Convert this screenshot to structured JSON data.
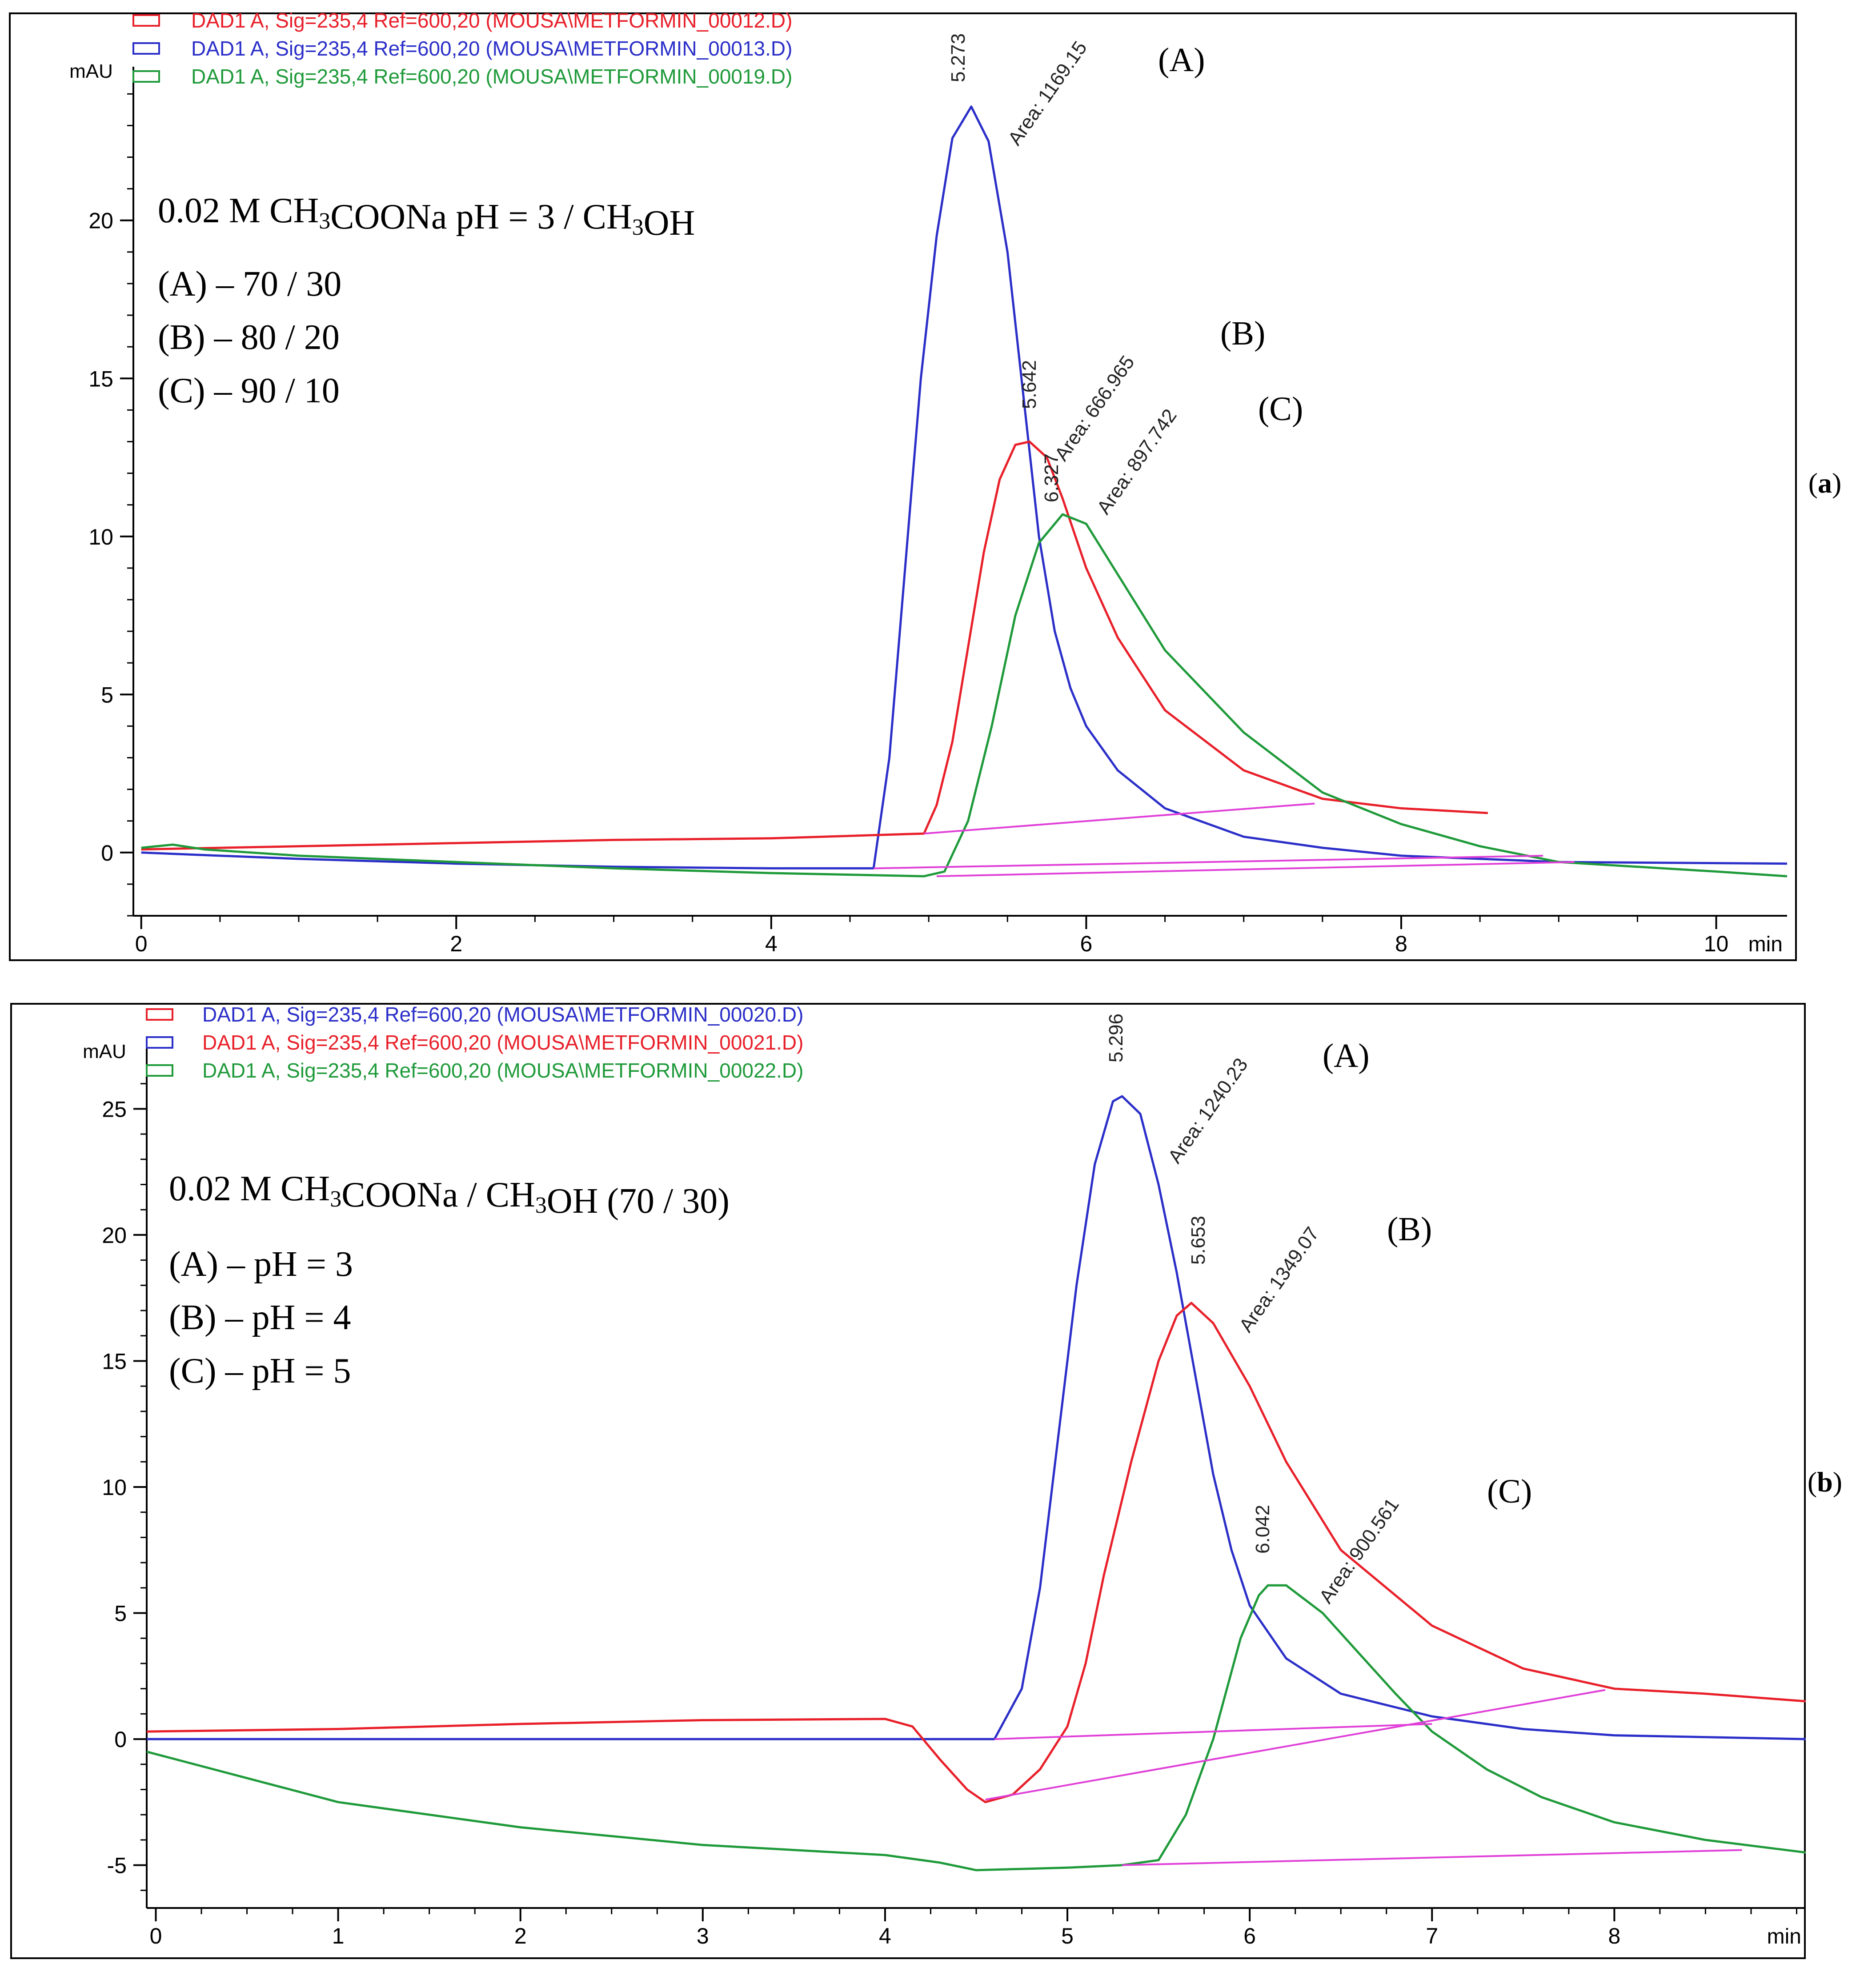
{
  "chart_data": [
    {
      "type": "line",
      "panel_label": "a",
      "y_unit_label": "mAU",
      "x_unit_label": "min",
      "xlim": [
        -0.05,
        10.45
      ],
      "ylim": [
        -2.0,
        24.3
      ],
      "xticks": [
        0,
        2,
        4,
        6,
        8,
        10
      ],
      "yticks": [
        0,
        5,
        10,
        15,
        20
      ],
      "legend": [
        {
          "color": "#e8202a",
          "text": "DAD1 A, Sig=235,4 Ref=600,20  (MOUSA\\METFORMIN_00012.D)"
        },
        {
          "color": "#2b2fc8",
          "text": "DAD1 A, Sig=235,4 Ref=600,20  (MOUSA\\METFORMIN_00013.D)"
        },
        {
          "color": "#1f9a3a",
          "text": "DAD1 A, Sig=235,4 Ref=600,20  (MOUSA\\METFORMIN_00019.D)"
        }
      ],
      "conditions": {
        "title": "0.02 M CH3COONa pH = 3 / CH3OH",
        "lines": [
          "(A) – 70 / 30",
          "(B) – 80 / 20",
          "(C) – 90 / 10"
        ]
      },
      "peaks": [
        {
          "letter": "(A)",
          "rt": "5.273",
          "area": "Area: 1169.15",
          "color": "#2b2fc8"
        },
        {
          "letter": "(B)",
          "rt": "5.642",
          "area": "Area: 666.965",
          "color": "#e8202a"
        },
        {
          "letter": "(C)",
          "rt": "6.327",
          "area": "Area: 897.742",
          "color": "#1f9a3a"
        }
      ],
      "series": [
        {
          "name": "blue (A)",
          "color": "#2b2fc8",
          "points": [
            [
              0,
              0.0
            ],
            [
              1,
              -0.2
            ],
            [
              2,
              -0.35
            ],
            [
              3,
              -0.45
            ],
            [
              4,
              -0.5
            ],
            [
              4.65,
              -0.5
            ],
            [
              4.75,
              3
            ],
            [
              4.85,
              9
            ],
            [
              4.95,
              15
            ],
            [
              5.05,
              19.5
            ],
            [
              5.15,
              22.6
            ],
            [
              5.27,
              23.6
            ],
            [
              5.38,
              22.5
            ],
            [
              5.5,
              19
            ],
            [
              5.6,
              14.5
            ],
            [
              5.7,
              10
            ],
            [
              5.8,
              7
            ],
            [
              5.9,
              5.2
            ],
            [
              6.0,
              4.0
            ],
            [
              6.2,
              2.6
            ],
            [
              6.5,
              1.4
            ],
            [
              7.0,
              0.5
            ],
            [
              7.5,
              0.15
            ],
            [
              8.0,
              -0.1
            ],
            [
              9.0,
              -0.3
            ],
            [
              10.45,
              -0.35
            ]
          ]
        },
        {
          "name": "red (B)",
          "color": "#e8202a",
          "points": [
            [
              0,
              0.1
            ],
            [
              1,
              0.2
            ],
            [
              2,
              0.3
            ],
            [
              3,
              0.4
            ],
            [
              4,
              0.45
            ],
            [
              4.97,
              0.6
            ],
            [
              5.05,
              1.5
            ],
            [
              5.15,
              3.5
            ],
            [
              5.25,
              6.5
            ],
            [
              5.35,
              9.5
            ],
            [
              5.45,
              11.8
            ],
            [
              5.55,
              12.9
            ],
            [
              5.64,
              13.0
            ],
            [
              5.75,
              12.5
            ],
            [
              5.85,
              11.2
            ],
            [
              6.0,
              9.0
            ],
            [
              6.2,
              6.8
            ],
            [
              6.5,
              4.5
            ],
            [
              7.0,
              2.6
            ],
            [
              7.5,
              1.7
            ],
            [
              8.0,
              1.4
            ],
            [
              8.55,
              1.25
            ]
          ]
        },
        {
          "name": "green (C)",
          "color": "#1f9a3a",
          "points": [
            [
              0,
              0.15
            ],
            [
              0.2,
              0.25
            ],
            [
              0.4,
              0.1
            ],
            [
              1,
              -0.1
            ],
            [
              2,
              -0.3
            ],
            [
              3,
              -0.5
            ],
            [
              4,
              -0.65
            ],
            [
              4.97,
              -0.75
            ],
            [
              5.1,
              -0.6
            ],
            [
              5.25,
              1
            ],
            [
              5.4,
              4
            ],
            [
              5.55,
              7.5
            ],
            [
              5.7,
              9.8
            ],
            [
              5.85,
              10.7
            ],
            [
              6.0,
              10.4
            ],
            [
              6.2,
              8.8
            ],
            [
              6.5,
              6.4
            ],
            [
              7.0,
              3.8
            ],
            [
              7.5,
              1.9
            ],
            [
              8.0,
              0.9
            ],
            [
              8.5,
              0.2
            ],
            [
              9.0,
              -0.3
            ],
            [
              10.0,
              -0.6
            ],
            [
              10.45,
              -0.75
            ]
          ]
        }
      ],
      "baselines": [
        {
          "color": "#e040d8",
          "from": [
            4.97,
            0.6
          ],
          "to": [
            7.45,
            1.55
          ]
        },
        {
          "color": "#e040d8",
          "from": [
            4.65,
            -0.5
          ],
          "to": [
            8.9,
            -0.1
          ]
        },
        {
          "color": "#e040d8",
          "from": [
            5.05,
            -0.75
          ],
          "to": [
            9.1,
            -0.3
          ]
        }
      ]
    },
    {
      "type": "line",
      "panel_label": "b",
      "y_unit_label": "mAU",
      "x_unit_label": "min",
      "xlim": [
        -0.05,
        9.05
      ],
      "ylim": [
        -6.7,
        26.7
      ],
      "xticks": [
        0,
        1,
        2,
        3,
        4,
        5,
        6,
        7,
        8
      ],
      "yticks": [
        -5,
        0,
        5,
        10,
        15,
        20,
        25
      ],
      "legend": [
        {
          "color": "#e8202a",
          "textColor": "#2b2fc8",
          "text": "DAD1 A, Sig=235,4 Ref=600,20  (MOUSA\\METFORMIN_00020.D)"
        },
        {
          "color": "#2b2fc8",
          "textColor": "#e8202a",
          "text": "DAD1 A, Sig=235,4 Ref=600,20  (MOUSA\\METFORMIN_00021.D)"
        },
        {
          "color": "#1f9a3a",
          "textColor": "#1f9a3a",
          "text": "DAD1 A, Sig=235,4 Ref=600,20  (MOUSA\\METFORMIN_00022.D)"
        }
      ],
      "conditions": {
        "title": "0.02 M CH3COONa / CH3OH (70 / 30)",
        "lines": [
          "(A) – pH = 3",
          "(B) – pH = 4",
          "(C) – pH = 5"
        ]
      },
      "peaks": [
        {
          "letter": "(A)",
          "rt": "5.296",
          "area": "Area: 1240.23",
          "color": "#2b2fc8"
        },
        {
          "letter": "(B)",
          "rt": "5.653",
          "area": "Area: 1349.07",
          "color": "#e8202a"
        },
        {
          "letter": "(C)",
          "rt": "6.042",
          "area": "Area: 900.561",
          "color": "#1f9a3a"
        }
      ],
      "series": [
        {
          "name": "blue (A)",
          "color": "#2b2fc8",
          "points": [
            [
              -0.05,
              0.0
            ],
            [
              2,
              0.0
            ],
            [
              4.6,
              0.0
            ],
            [
              4.75,
              2
            ],
            [
              4.85,
              6
            ],
            [
              4.95,
              12
            ],
            [
              5.05,
              18
            ],
            [
              5.15,
              22.8
            ],
            [
              5.25,
              25.3
            ],
            [
              5.3,
              25.5
            ],
            [
              5.4,
              24.8
            ],
            [
              5.5,
              22
            ],
            [
              5.6,
              18.5
            ],
            [
              5.7,
              14.5
            ],
            [
              5.8,
              10.5
            ],
            [
              5.9,
              7.5
            ],
            [
              6.0,
              5.3
            ],
            [
              6.2,
              3.2
            ],
            [
              6.5,
              1.8
            ],
            [
              7.0,
              0.9
            ],
            [
              7.5,
              0.4
            ],
            [
              8.0,
              0.15
            ],
            [
              9.05,
              0.0
            ]
          ]
        },
        {
          "name": "red (B)",
          "color": "#e8202a",
          "points": [
            [
              -0.05,
              0.3
            ],
            [
              1,
              0.4
            ],
            [
              2,
              0.6
            ],
            [
              3,
              0.75
            ],
            [
              4,
              0.8
            ],
            [
              4.15,
              0.5
            ],
            [
              4.3,
              -0.8
            ],
            [
              4.45,
              -2.0
            ],
            [
              4.55,
              -2.5
            ],
            [
              4.7,
              -2.2
            ],
            [
              4.85,
              -1.2
            ],
            [
              5.0,
              0.5
            ],
            [
              5.1,
              3
            ],
            [
              5.2,
              6.5
            ],
            [
              5.35,
              11
            ],
            [
              5.5,
              15
            ],
            [
              5.6,
              16.8
            ],
            [
              5.68,
              17.3
            ],
            [
              5.8,
              16.5
            ],
            [
              6.0,
              14
            ],
            [
              6.2,
              11
            ],
            [
              6.5,
              7.5
            ],
            [
              7.0,
              4.5
            ],
            [
              7.5,
              2.8
            ],
            [
              8.0,
              2.0
            ],
            [
              8.5,
              1.8
            ],
            [
              9.05,
              1.5
            ]
          ]
        },
        {
          "name": "green (C)",
          "color": "#1f9a3a",
          "points": [
            [
              -0.05,
              -0.5
            ],
            [
              1,
              -2.5
            ],
            [
              2,
              -3.5
            ],
            [
              3,
              -4.2
            ],
            [
              4,
              -4.6
            ],
            [
              4.3,
              -4.9
            ],
            [
              4.5,
              -5.2
            ],
            [
              5.0,
              -5.1
            ],
            [
              5.3,
              -5.0
            ],
            [
              5.5,
              -4.8
            ],
            [
              5.65,
              -3
            ],
            [
              5.8,
              0
            ],
            [
              5.95,
              4
            ],
            [
              6.05,
              5.7
            ],
            [
              6.1,
              6.1
            ],
            [
              6.2,
              6.1
            ],
            [
              6.4,
              5
            ],
            [
              6.6,
              3.4
            ],
            [
              6.8,
              1.8
            ],
            [
              7.0,
              0.3
            ],
            [
              7.3,
              -1.2
            ],
            [
              7.6,
              -2.3
            ],
            [
              8.0,
              -3.3
            ],
            [
              8.5,
              -4.0
            ],
            [
              9.05,
              -4.5
            ]
          ]
        }
      ],
      "baselines": [
        {
          "color": "#e040d8",
          "from": [
            4.55,
            -2.4
          ],
          "to": [
            7.95,
            1.95
          ]
        },
        {
          "color": "#e040d8",
          "from": [
            4.6,
            0.0
          ],
          "to": [
            7.0,
            0.6
          ]
        },
        {
          "color": "#e040d8",
          "from": [
            5.3,
            -5.0
          ],
          "to": [
            8.7,
            -4.4
          ]
        }
      ]
    }
  ],
  "panels": [
    "(a)",
    "(b)"
  ]
}
